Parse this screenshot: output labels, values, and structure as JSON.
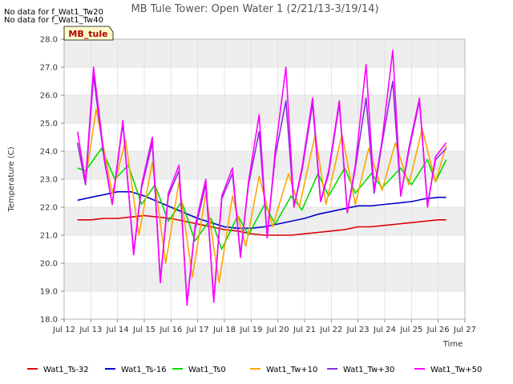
{
  "header": {
    "nodata_lines": [
      "No data for f_Wat1_Tw20",
      "No data for f_Wat1_Tw40"
    ],
    "station_label": "MB_tule"
  },
  "chart_data": {
    "type": "line",
    "title": "MB Tule Tower: Open Water 1 (2/21/13-3/19/14)",
    "xlabel": "Time",
    "ylabel": "Temperature (C)",
    "xlim": [
      12,
      27
    ],
    "ylim": [
      18.0,
      28.0
    ],
    "x_tick_values": [
      12,
      13,
      14,
      15,
      16,
      17,
      18,
      19,
      20,
      21,
      22,
      23,
      24,
      25,
      26,
      27
    ],
    "x_tick_labels": [
      "Jul 12",
      "Jul 13",
      "Jul 14",
      "Jul 15",
      "Jul 16",
      "Jul 17",
      "Jul 18",
      "Jul 19",
      "Jul 20",
      "Jul 21",
      "Jul 22",
      "Jul 23",
      "Jul 24",
      "Jul 25",
      "Jul 26",
      "Jul 27"
    ],
    "y_tick_values": [
      18.0,
      19.0,
      20.0,
      21.0,
      22.0,
      23.0,
      24.0,
      25.0,
      26.0,
      27.0,
      28.0
    ],
    "y_tick_labels": [
      "18.0",
      "19.0",
      "20.0",
      "21.0",
      "22.0",
      "23.0",
      "24.0",
      "25.0",
      "26.0",
      "27.0",
      "28.0"
    ],
    "grid": true,
    "legend_position": "bottom",
    "series": [
      {
        "name": "Wat1_Ts-32",
        "color": "#dd0000",
        "x": [
          12.5,
          13.0,
          13.5,
          14.0,
          14.5,
          15.0,
          15.5,
          16.0,
          16.5,
          17.0,
          17.5,
          18.0,
          18.5,
          19.0,
          19.5,
          20.0,
          20.5,
          21.0,
          21.5,
          22.0,
          22.5,
          23.0,
          23.5,
          24.0,
          24.5,
          25.0,
          25.5,
          26.0,
          26.3
        ],
        "y": [
          21.55,
          21.55,
          21.6,
          21.6,
          21.65,
          21.7,
          21.65,
          21.6,
          21.5,
          21.4,
          21.3,
          21.2,
          21.15,
          21.05,
          21.0,
          21.0,
          21.0,
          21.05,
          21.1,
          21.15,
          21.2,
          21.3,
          21.3,
          21.35,
          21.4,
          21.45,
          21.5,
          21.55,
          21.55
        ]
      },
      {
        "name": "Wat1_Ts-16",
        "color": "#0000cc",
        "x": [
          12.5,
          13.0,
          13.5,
          14.0,
          14.5,
          15.0,
          15.5,
          16.0,
          16.5,
          17.0,
          17.5,
          18.0,
          18.5,
          19.0,
          19.5,
          20.0,
          20.5,
          21.0,
          21.5,
          22.0,
          22.5,
          23.0,
          23.5,
          24.0,
          24.5,
          25.0,
          25.5,
          26.0,
          26.3
        ],
        "y": [
          22.25,
          22.35,
          22.45,
          22.55,
          22.55,
          22.4,
          22.2,
          22.0,
          21.8,
          21.6,
          21.45,
          21.3,
          21.25,
          21.25,
          21.3,
          21.4,
          21.5,
          21.6,
          21.75,
          21.85,
          21.95,
          22.05,
          22.05,
          22.1,
          22.15,
          22.2,
          22.3,
          22.35,
          22.35
        ]
      },
      {
        "name": "Wat1_Ts0",
        "color": "#00dd00",
        "x": [
          12.5,
          12.8,
          13.4,
          13.9,
          14.4,
          14.9,
          15.4,
          15.9,
          16.4,
          16.9,
          17.5,
          17.9,
          18.5,
          18.9,
          19.5,
          19.9,
          20.5,
          20.9,
          21.5,
          21.9,
          22.5,
          22.9,
          23.5,
          23.9,
          24.6,
          25.0,
          25.6,
          25.9,
          26.3
        ],
        "y": [
          23.4,
          23.3,
          24.1,
          23.0,
          23.5,
          22.1,
          22.8,
          21.5,
          22.2,
          20.8,
          21.6,
          20.5,
          21.7,
          21.0,
          22.1,
          21.4,
          22.4,
          21.9,
          23.2,
          22.4,
          23.4,
          22.5,
          23.2,
          22.7,
          23.4,
          22.8,
          23.7,
          22.9,
          23.7
        ]
      },
      {
        "name": "Wat1_Tw+10",
        "color": "#ffa500",
        "x": [
          12.5,
          12.8,
          13.2,
          13.8,
          14.3,
          14.8,
          15.3,
          15.8,
          16.3,
          16.8,
          17.3,
          17.8,
          18.3,
          18.8,
          19.3,
          19.8,
          20.4,
          20.8,
          21.4,
          21.8,
          22.4,
          22.9,
          23.4,
          23.9,
          24.4,
          24.9,
          25.4,
          25.9,
          26.3
        ],
        "y": [
          24.3,
          23.0,
          25.5,
          22.5,
          24.4,
          21.0,
          23.6,
          20.0,
          22.9,
          19.5,
          22.5,
          19.3,
          22.4,
          20.6,
          23.1,
          21.3,
          23.2,
          22.0,
          24.6,
          22.1,
          24.6,
          22.1,
          24.1,
          22.6,
          24.3,
          22.8,
          24.8,
          22.9,
          24.2
        ]
      },
      {
        "name": "Wat1_Tw+30",
        "color": "#8a2be2",
        "x": [
          12.5,
          12.8,
          13.1,
          13.5,
          13.8,
          14.2,
          14.6,
          14.9,
          15.3,
          15.6,
          15.9,
          16.3,
          16.6,
          16.9,
          17.3,
          17.6,
          17.9,
          18.3,
          18.6,
          18.9,
          19.3,
          19.6,
          19.9,
          20.3,
          20.6,
          20.9,
          21.3,
          21.6,
          21.9,
          22.3,
          22.6,
          22.9,
          23.3,
          23.6,
          23.9,
          24.3,
          24.6,
          24.9,
          25.3,
          25.6,
          25.9,
          26.3
        ],
        "y": [
          24.3,
          22.8,
          26.7,
          23.7,
          22.1,
          25.0,
          20.4,
          22.7,
          24.3,
          19.4,
          22.4,
          23.3,
          18.6,
          21.2,
          22.8,
          18.7,
          22.3,
          23.2,
          20.3,
          22.8,
          24.7,
          21.0,
          23.8,
          25.8,
          22.0,
          23.3,
          25.7,
          22.2,
          23.2,
          25.7,
          21.8,
          23.4,
          25.9,
          22.5,
          24.3,
          26.5,
          22.4,
          24.0,
          25.8,
          22.1,
          23.7,
          24.1
        ]
      },
      {
        "name": "Wat1_Tw+50",
        "color": "#ff00ff",
        "x": [
          12.5,
          12.8,
          13.1,
          13.5,
          13.8,
          14.2,
          14.6,
          14.9,
          15.3,
          15.6,
          15.9,
          16.3,
          16.6,
          16.9,
          17.3,
          17.6,
          17.9,
          18.3,
          18.6,
          18.9,
          19.3,
          19.6,
          19.9,
          20.3,
          20.6,
          20.9,
          21.3,
          21.6,
          21.9,
          22.3,
          22.6,
          22.9,
          23.3,
          23.6,
          23.9,
          24.3,
          24.6,
          24.9,
          25.3,
          25.6,
          25.9,
          26.3
        ],
        "y": [
          24.7,
          22.9,
          27.0,
          23.8,
          22.1,
          25.1,
          20.3,
          22.8,
          24.5,
          19.3,
          22.5,
          23.5,
          18.5,
          21.3,
          23.0,
          18.6,
          22.4,
          23.4,
          20.2,
          22.9,
          25.3,
          20.9,
          24.0,
          27.0,
          22.0,
          23.4,
          25.9,
          22.2,
          23.3,
          25.8,
          21.8,
          23.5,
          27.1,
          22.6,
          24.4,
          27.6,
          22.4,
          24.1,
          25.9,
          22.0,
          23.8,
          24.3
        ]
      }
    ]
  }
}
